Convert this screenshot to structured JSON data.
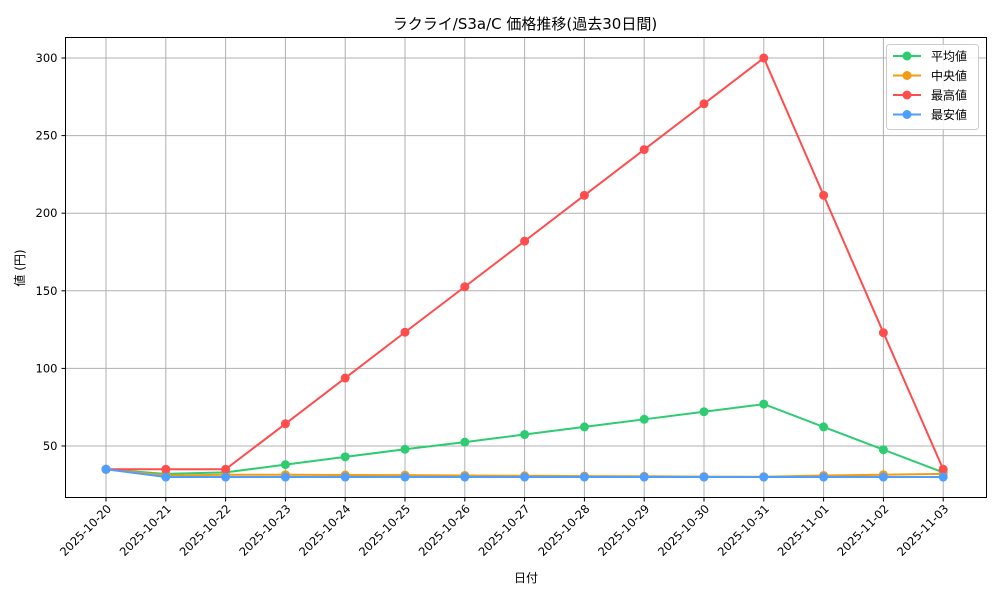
{
  "chart_data": {
    "type": "line",
    "title": "ラクライ/S3a/C 価格推移(過去30日間)",
    "xlabel": "日付",
    "ylabel": "値 (円)",
    "ylim": [
      15,
      313
    ],
    "yticks": [
      50,
      100,
      150,
      200,
      250,
      300
    ],
    "grid": true,
    "legend_position": "upper right",
    "categories": [
      "2025-10-20",
      "2025-10-21",
      "2025-10-22",
      "2025-10-23",
      "2025-10-24",
      "2025-10-25",
      "2025-10-26",
      "2025-10-27",
      "2025-10-28",
      "2025-10-29",
      "2025-10-30",
      "2025-10-31",
      "2025-11-01",
      "2025-11-02",
      "2025-11-03"
    ],
    "series": [
      {
        "name": "平均値",
        "color": "#2ecc71",
        "values": [
          35,
          32,
          33,
          38,
          43,
          47.9,
          52.5,
          57.4,
          62.3,
          67.2,
          72.1,
          77,
          62.3,
          47.6,
          33
        ]
      },
      {
        "name": "中央値",
        "color": "#f39c12",
        "values": [
          35,
          31,
          31.5,
          31.5,
          31.3,
          31.2,
          31,
          30.8,
          30.6,
          30.5,
          30.3,
          30.2,
          31,
          31.5,
          32
        ]
      },
      {
        "name": "最高値",
        "color": "#ff4d4d",
        "values": [
          35,
          35,
          35,
          64.3,
          93.8,
          123.3,
          152.6,
          182,
          211.5,
          241,
          270.5,
          300,
          211.5,
          123,
          35
        ]
      },
      {
        "name": "最安値",
        "color": "#4d9eff",
        "values": [
          35,
          30,
          30,
          30,
          30,
          30,
          30,
          30,
          30,
          30,
          30,
          30,
          30,
          30,
          30
        ]
      }
    ]
  }
}
